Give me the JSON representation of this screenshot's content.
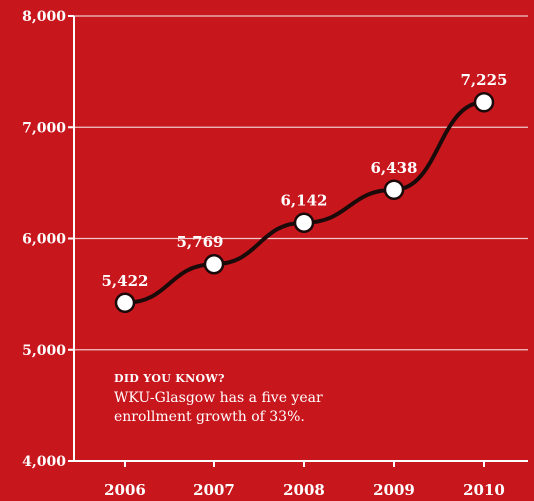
{
  "colors": {
    "background": "#c8161d",
    "line": "#1a0a0a",
    "marker_fill": "#ffffff",
    "grid": "#f0c8c8",
    "text": "#ffffff"
  },
  "chart_data": {
    "type": "line",
    "x": [
      "2006",
      "2007",
      "2008",
      "2009",
      "2010"
    ],
    "series": [
      {
        "values": [
          5422,
          5769,
          6142,
          6438,
          7225
        ]
      }
    ],
    "data_labels": [
      "5,422",
      "5,769",
      "6,142",
      "6,438",
      "7,225"
    ],
    "ylim": [
      4000,
      8000
    ],
    "yticks": [
      4000,
      5000,
      6000,
      7000,
      8000
    ],
    "ytick_labels": [
      "4,000",
      "5,000",
      "6,000",
      "7,000",
      "8,000"
    ],
    "xlabel": "",
    "ylabel": "",
    "grid": true,
    "legend": "none"
  },
  "callout": {
    "heading": "DID YOU KNOW?",
    "line1": "WKU-Glasgow has a five year",
    "line2": "enrollment growth of 33%."
  }
}
